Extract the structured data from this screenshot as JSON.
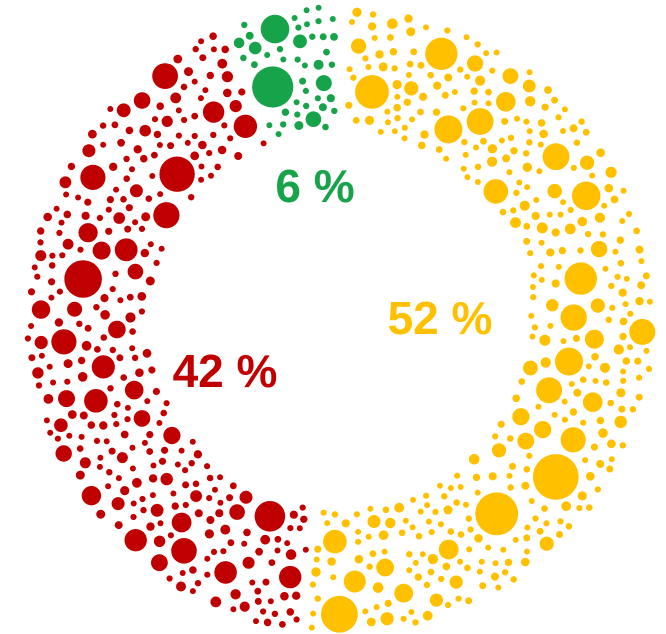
{
  "chart_data": {
    "type": "dot-donut",
    "values": [
      52,
      42,
      6
    ],
    "value_labels": [
      "52 %",
      "42 %",
      "6 %"
    ],
    "colors": [
      "#ffc000",
      "#c00000",
      "#17a34a"
    ]
  }
}
